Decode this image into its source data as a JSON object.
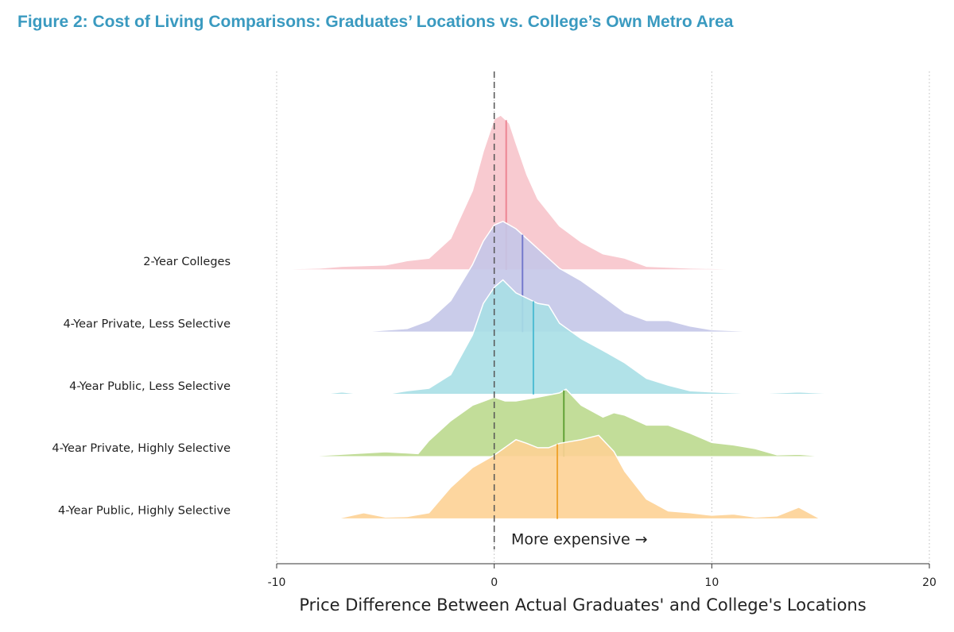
{
  "chart_data": {
    "type": "ridgeline",
    "title": "Figure 2: Cost of Living Comparisons: Graduates’ Locations vs. College’s Own Metro Area",
    "x_label": "Price Difference Between Actual Graduates' and College's Locations",
    "annotation": "More expensive →",
    "reference_x": 0,
    "xlim": [
      -10,
      20
    ],
    "xticks": [
      -10,
      0,
      10,
      20
    ],
    "grid": true,
    "series": [
      {
        "name": "2-Year Colleges",
        "color": "#f7c4cb",
        "line_color": "#ec8593",
        "mean": 0.55,
        "x": [
          -11.5,
          -8,
          -7,
          -5,
          -4,
          -3,
          -2,
          -1,
          -0.5,
          0,
          0.3,
          0.7,
          1,
          1.5,
          2,
          3,
          4,
          5,
          6,
          7,
          9,
          12,
          17
        ],
        "values": [
          0,
          0.03,
          0.06,
          0.08,
          0.15,
          0.19,
          0.51,
          1.28,
          1.92,
          2.44,
          2.5,
          2.37,
          2.05,
          1.54,
          1.15,
          0.71,
          0.45,
          0.26,
          0.19,
          0.06,
          0.03,
          0.01,
          0
        ]
      },
      {
        "name": "4-Year Private, Less Selective",
        "color": "#c4c7e8",
        "line_color": "#7479cc",
        "mean": 1.3,
        "x": [
          -8,
          -6,
          -4,
          -3,
          -2,
          -1,
          -0.5,
          0,
          0.4,
          1,
          2,
          3,
          4,
          5,
          6,
          7,
          8,
          9,
          10,
          12.8
        ],
        "values": [
          0,
          0.01,
          0.06,
          0.19,
          0.51,
          1.09,
          1.47,
          1.73,
          1.79,
          1.67,
          1.35,
          1.03,
          0.83,
          0.58,
          0.32,
          0.19,
          0.19,
          0.1,
          0.04,
          0
        ]
      },
      {
        "name": "4-Year Public, Less Selective",
        "color": "#a9dfe6",
        "line_color": "#4fbdd3",
        "mean": 1.8,
        "x": [
          -8,
          -7,
          -6,
          -5,
          -4,
          -3,
          -2,
          -1,
          -0.5,
          0,
          0.4,
          1,
          2,
          2.5,
          3,
          4,
          5,
          6,
          7,
          8,
          9,
          10,
          12,
          14,
          16.3
        ],
        "values": [
          0,
          0.04,
          0,
          0,
          0.06,
          0.1,
          0.32,
          0.96,
          1.47,
          1.73,
          1.85,
          1.64,
          1.47,
          1.44,
          1.15,
          0.9,
          0.71,
          0.51,
          0.26,
          0.15,
          0.06,
          0.04,
          0.01,
          0.04,
          0
        ]
      },
      {
        "name": "4-Year Private, Highly Selective",
        "color": "#bbd98e",
        "line_color": "#62a237",
        "mean": 3.2,
        "x": [
          -9,
          -7,
          -5,
          -3.5,
          -3,
          -2,
          -1,
          0,
          0.5,
          1,
          2,
          3,
          3.3,
          4,
          5,
          5.5,
          6,
          7,
          8,
          9,
          10,
          11,
          12,
          13,
          14,
          15.4
        ],
        "values": [
          0,
          0.04,
          0.08,
          0.05,
          0.26,
          0.58,
          0.83,
          0.96,
          0.9,
          0.9,
          0.96,
          1.03,
          1.09,
          0.83,
          0.64,
          0.71,
          0.67,
          0.51,
          0.51,
          0.38,
          0.23,
          0.19,
          0.13,
          0.03,
          0.04,
          0
        ]
      },
      {
        "name": "4-Year Public, Highly Selective",
        "color": "#fdd295",
        "line_color": "#f0a531",
        "mean": 2.9,
        "x": [
          -7.3,
          -6,
          -5,
          -4,
          -3,
          -2,
          -1,
          0,
          1,
          1.5,
          2,
          2.5,
          3,
          4,
          4.8,
          5.5,
          6,
          7,
          8,
          9,
          10,
          11,
          12,
          13,
          14,
          15
        ],
        "values": [
          0,
          0.1,
          0.03,
          0.04,
          0.1,
          0.51,
          0.83,
          1.03,
          1.28,
          1.22,
          1.15,
          1.15,
          1.22,
          1.28,
          1.35,
          1.09,
          0.77,
          0.32,
          0.13,
          0.1,
          0.06,
          0.08,
          0.03,
          0.05,
          0.19,
          0
        ]
      }
    ]
  }
}
